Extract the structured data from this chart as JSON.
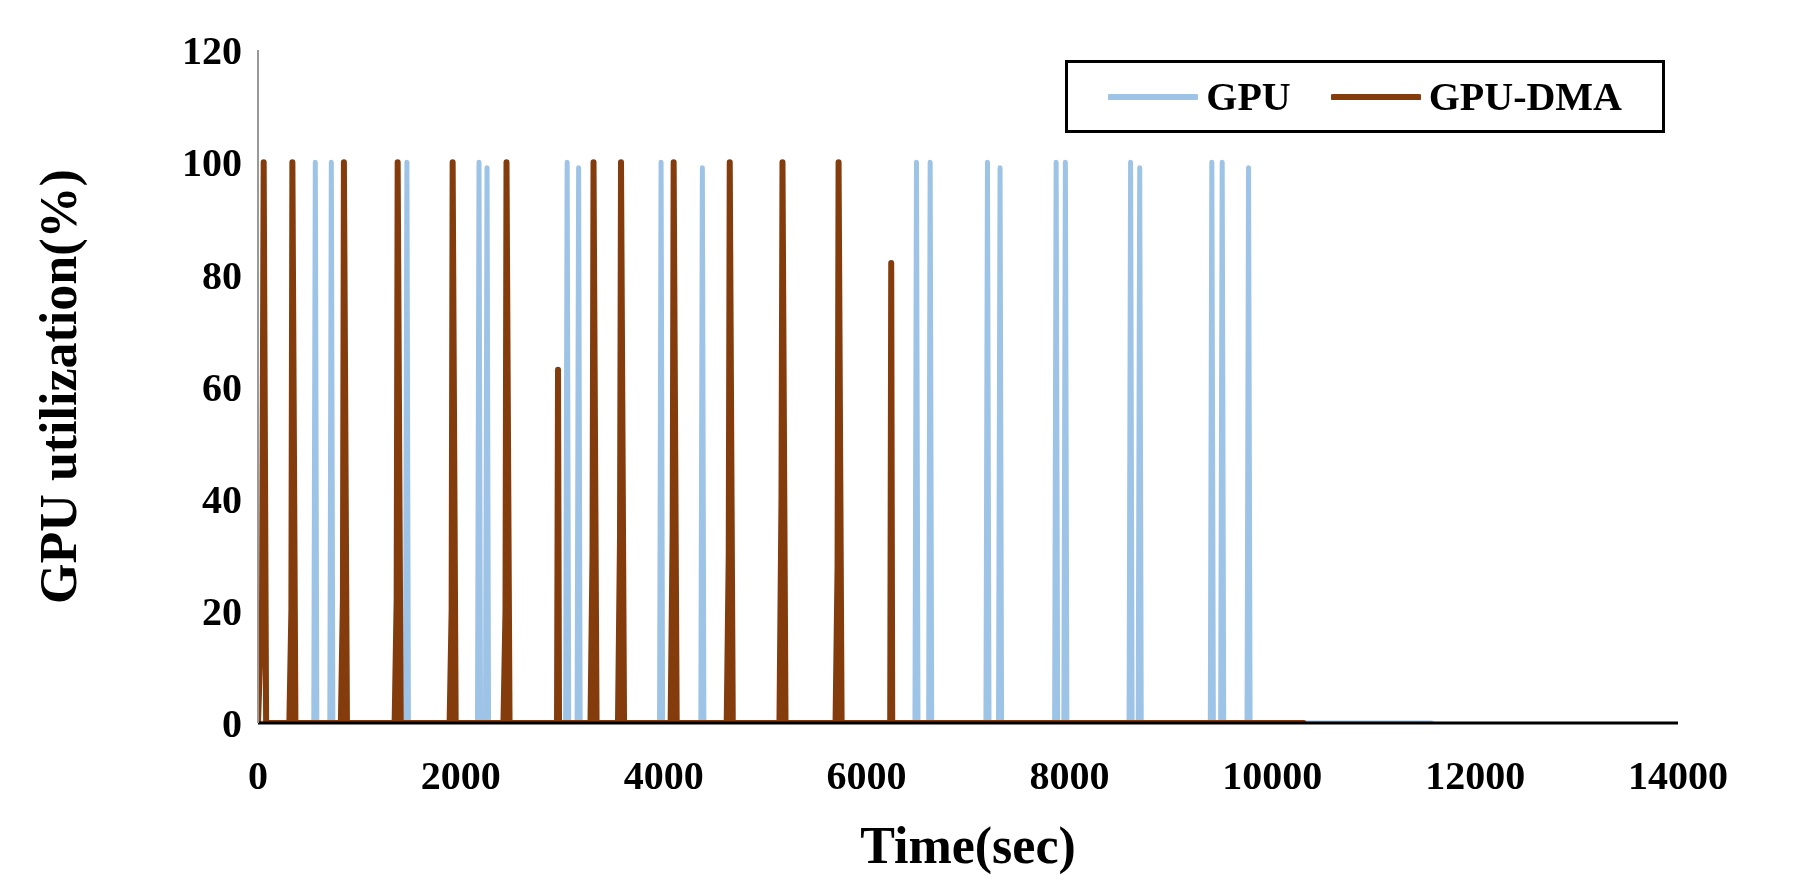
{
  "chart_data": {
    "type": "line",
    "xlabel": "Time(sec)",
    "ylabel": "GPU utilization(%)",
    "xlim": [
      0,
      14000
    ],
    "xticks": [
      0,
      2000,
      4000,
      6000,
      8000,
      10000,
      12000,
      14000
    ],
    "ylim": [
      0,
      120
    ],
    "yticks": [
      0,
      20,
      40,
      60,
      80,
      100,
      120
    ],
    "legend": "top right",
    "series": [
      {
        "name": "GPU",
        "color": "#9dc3e6",
        "x": [
          0,
          550,
          565,
          580,
          708,
          723,
          738,
          1453,
          1468,
          1483,
          2164,
          2179,
          2194,
          2243,
          2258,
          2273,
          3033,
          3048,
          3063,
          3146,
          3161,
          3176,
          3959,
          3974,
          3989,
          4366,
          4381,
          4396,
          6477,
          6492,
          6507,
          6612,
          6627,
          6642,
          7177,
          7192,
          7207,
          7301,
          7316,
          7331,
          7854,
          7869,
          7884,
          7945,
          7960,
          7975,
          8588,
          8603,
          8618,
          8678,
          8693,
          8708,
          9389,
          9404,
          9419,
          9491,
          9506,
          9521,
          9751,
          9766,
          9781,
          11572
        ],
        "values": [
          0,
          0,
          100,
          0,
          0,
          100,
          0,
          0,
          100,
          0,
          0,
          100,
          0,
          0,
          99,
          0,
          0,
          100,
          0,
          0,
          99,
          0,
          0,
          100,
          0,
          0,
          99,
          0,
          0,
          100,
          0,
          0,
          100,
          0,
          0,
          100,
          0,
          0,
          99,
          0,
          0,
          100,
          0,
          0,
          100,
          0,
          0,
          100,
          0,
          0,
          99,
          0,
          0,
          100,
          0,
          0,
          100,
          0,
          0,
          99,
          0,
          0
        ]
      },
      {
        "name": "GPU-DMA",
        "color": "#843c0c",
        "x": [
          0,
          40,
          56,
          80,
          309,
          329,
          339,
          369,
          817,
          837,
          847,
          877,
          1347,
          1367,
          1377,
          1407,
          1889,
          1909,
          1919,
          1949,
          2420,
          2440,
          2450,
          2480,
          2948,
          2958,
          2968,
          3278,
          3298,
          3308,
          3338,
          3549,
          3569,
          3579,
          3609,
          4068,
          4088,
          4098,
          4128,
          4621,
          4641,
          4651,
          4681,
          5141,
          5161,
          5171,
          5201,
          5694,
          5714,
          5724,
          5754,
          6233,
          6243,
          6253,
          10308
        ],
        "values": [
          0,
          22,
          100,
          0,
          0,
          20,
          100,
          0,
          0,
          22,
          100,
          0,
          0,
          22,
          100,
          0,
          0,
          20,
          100,
          0,
          0,
          20,
          100,
          0,
          0,
          63,
          0,
          0,
          30,
          100,
          0,
          0,
          33,
          100,
          0,
          0,
          34,
          100,
          0,
          0,
          30,
          100,
          0,
          0,
          40,
          100,
          0,
          0,
          28,
          100,
          0,
          0,
          82,
          0,
          0
        ]
      }
    ]
  }
}
